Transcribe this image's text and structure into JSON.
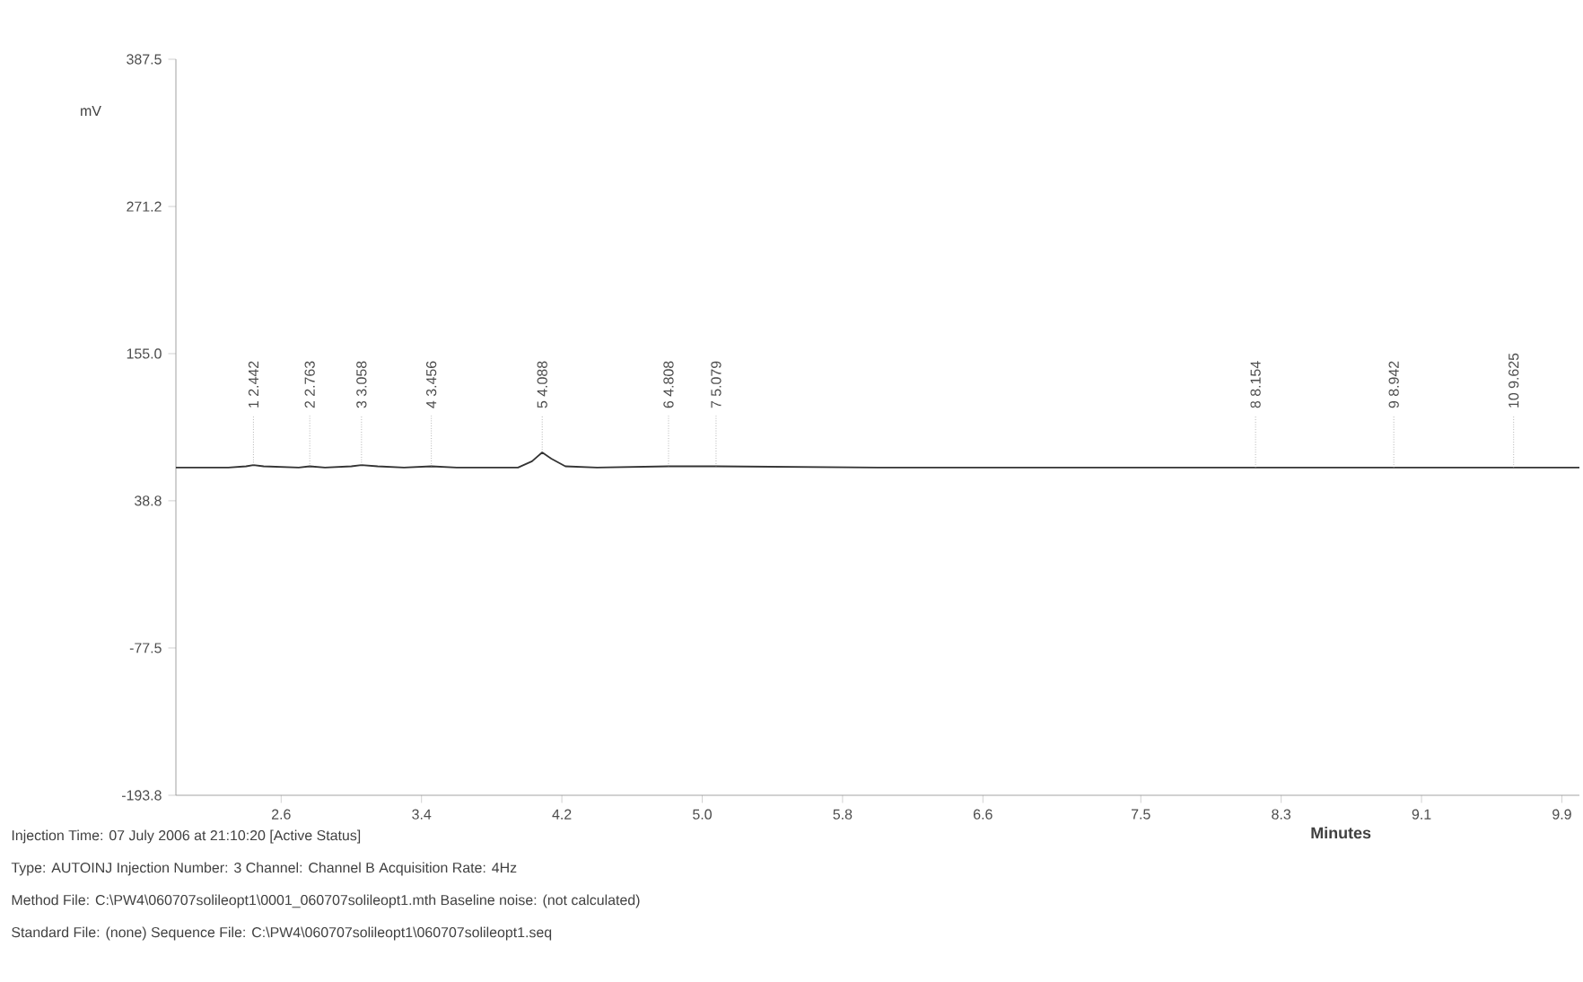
{
  "chart_data": {
    "type": "line",
    "xlabel": "Minutes",
    "ylabel": "mV",
    "xlim": [
      2.0,
      10.0
    ],
    "ylim": [
      -193.8,
      387.5
    ],
    "xticks": [
      2.6,
      3.4,
      4.2,
      {
        "value": 5.0,
        "label": "5.0"
      },
      5.8,
      6.6,
      7.5,
      8.3,
      9.1,
      9.9
    ],
    "yticks": [
      -193.8,
      -77.5,
      38.8,
      {
        "value": 155.0,
        "label": "155.0"
      },
      271.2,
      387.5
    ],
    "grid": false,
    "marker": "none",
    "line_style": "solid",
    "series": [
      {
        "color": "#333333",
        "x": [
          2.0,
          2.3,
          2.4,
          2.442,
          2.5,
          2.7,
          2.763,
          2.85,
          3.0,
          3.058,
          3.15,
          3.3,
          3.456,
          3.6,
          3.95,
          4.03,
          4.088,
          4.14,
          4.22,
          4.4,
          4.808,
          5.079,
          6.0,
          8.154,
          8.942,
          9.625,
          10.0
        ],
        "values": [
          65,
          65,
          66,
          67,
          66,
          65,
          66,
          65,
          66,
          67,
          66,
          65,
          66,
          65,
          65,
          70,
          77,
          72,
          66,
          65,
          66,
          66,
          65,
          65,
          65,
          65,
          65
        ]
      }
    ],
    "annotations": [
      {
        "text": "1 2.442",
        "x": 2.442,
        "y": 67
      },
      {
        "text": "2 2.763",
        "x": 2.763,
        "y": 66
      },
      {
        "text": "3 3.058",
        "x": 3.058,
        "y": 67
      },
      {
        "text": "4 3.456",
        "x": 3.456,
        "y": 66
      },
      {
        "text": "5 4.088",
        "x": 4.088,
        "y": 77
      },
      {
        "text": "6 4.808",
        "x": 4.808,
        "y": 66
      },
      {
        "text": "7 5.079",
        "x": 5.079,
        "y": 66
      },
      {
        "text": "8 8.154",
        "x": 8.154,
        "y": 65
      },
      {
        "text": "9 8.942",
        "x": 8.942,
        "y": 65
      },
      {
        "text": "10 9.625",
        "x": 9.625,
        "y": 65
      },
      "Injection Time: 07 July 2006 at 21:10:20  [Active Status]",
      "Type: AUTOINJ   Injection Number: 3   Channel: Channel B   Acquisition Rate: 4Hz",
      "Method File: C:\\PW4\\060707solileopt1\\0001_060707solileopt1.mth   Baseline noise: (not calculated)",
      "Standard File: (none)   Sequence File: C:\\PW4\\060707solileopt1\\060707solileopt1.seq"
    ]
  }
}
